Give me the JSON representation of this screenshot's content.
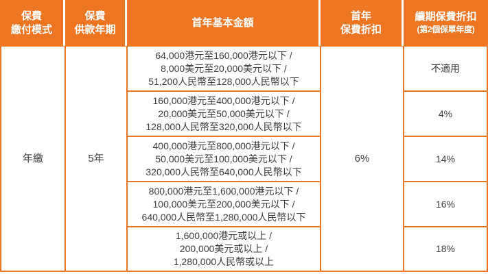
{
  "colors": {
    "accent": "#EE7623",
    "header_text": "#FFFFFF",
    "body_text": "#3C3C3C"
  },
  "header": {
    "payment_mode": {
      "line1": "保費",
      "line2": "繳付模式"
    },
    "payment_term": {
      "line1": "保費",
      "line2": "供款年期"
    },
    "first_year_amount": {
      "line1": "首年基本金額"
    },
    "first_year_discount": {
      "line1": "首年",
      "line2": "保費折扣"
    },
    "renewal_discount": {
      "line1": "續期保費折扣",
      "line2": "(第2個保單年度)"
    }
  },
  "body": {
    "payment_mode": "年繳",
    "payment_term": "5年",
    "first_year_discount": "6%",
    "rows": [
      {
        "amount_line1": "64,000港元至160,000港元以下 /",
        "amount_line2": "8,000美元至20,000美元以下 /",
        "amount_line3": "51,200人民幣至128,000人民幣以下",
        "renewal_discount": "不適用"
      },
      {
        "amount_line1": "160,000港元至400,000港元以下 /",
        "amount_line2": "20,000美元至50,000美元以下 /",
        "amount_line3": "128,000人民幣至320,000人民幣以下",
        "renewal_discount": "4%"
      },
      {
        "amount_line1": "400,000港元至800,000港元以下 /",
        "amount_line2": "50,000美元至100,000美元以下 /",
        "amount_line3": "320,000人民幣至640,000人民幣以下",
        "renewal_discount": "14%"
      },
      {
        "amount_line1": "800,000港元至1,600,000港元以下 /",
        "amount_line2": "100,000美元至200,000美元以下 /",
        "amount_line3": "640,000人民幣至1,280,000人民幣以下",
        "renewal_discount": "16%"
      },
      {
        "amount_line1": "1,600,000港元或以上 /",
        "amount_line2": "200,000美元或以上 /",
        "amount_line3": "1,280,000人民幣或以上",
        "renewal_discount": "18%"
      }
    ]
  }
}
